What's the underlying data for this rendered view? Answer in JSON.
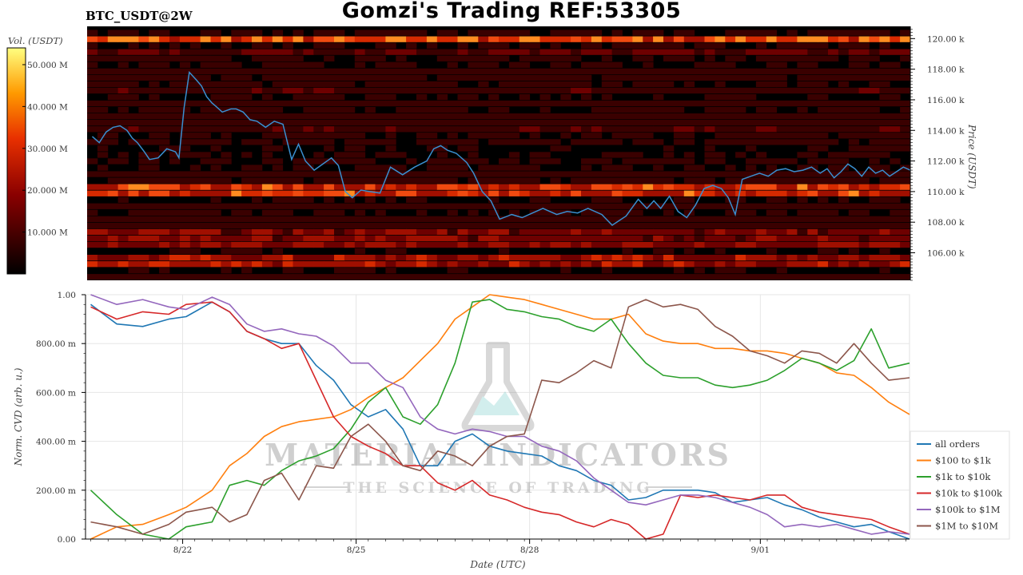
{
  "header": {
    "title": "Gomzi's Trading REF:53305",
    "symbol": "BTC_USDT@2W"
  },
  "watermark": {
    "brand": "MATERIAL INDICATORS",
    "tagline": "THE SCIENCE OF TRADING"
  },
  "colors": {
    "heatmap_bg": "#000000",
    "price_line": "#3a8fd0",
    "grid": "#e6e6e6"
  },
  "chart_data": [
    {
      "type": "heatmap",
      "title": "",
      "colorbar": {
        "label": "Vol. (USDT)",
        "ticks": [
          "10.000 M",
          "20.000 M",
          "30.000 M",
          "40.000 M",
          "50.000 M"
        ],
        "tick_values": [
          10,
          20,
          30,
          40,
          50
        ],
        "range": [
          0,
          54
        ],
        "colormap": "hot"
      },
      "ylabel": "Price (USDT)",
      "ylim": [
        104.2,
        120.8
      ],
      "y_ticks": [
        106,
        108,
        110,
        112,
        114,
        116,
        118,
        120
      ],
      "y_tick_labels": [
        "106.00 k",
        "108.00 k",
        "110.00 k",
        "112.00 k",
        "114.00 k",
        "116.00 k",
        "118.00 k",
        "120.00 k"
      ],
      "grid": false,
      "price_series": {
        "name": "price",
        "x": [
          0,
          0.4,
          0.8,
          1.2,
          1.6,
          2.0,
          2.3,
          2.6,
          3.0,
          3.3,
          3.8,
          4.3,
          4.8,
          5.0,
          5.3,
          5.6,
          6.0,
          6.3,
          6.6,
          6.9,
          7.1,
          7.5,
          8.0,
          8.3,
          8.7,
          9.1,
          9.5,
          10.0,
          10.5,
          11.0,
          11.5,
          11.9,
          12.3,
          12.8,
          13.3,
          13.8,
          14.2,
          14.6,
          15.0,
          15.5,
          16.0,
          16.6,
          17.2,
          17.9,
          18.6,
          19.3,
          19.7,
          20.1,
          20.5,
          21.0,
          21.6,
          22.0,
          22.5,
          23.0,
          23.5,
          24.2,
          24.8,
          25.4,
          26.0,
          26.8,
          27.4,
          28.0,
          28.6,
          29.4,
          30.0,
          30.8,
          31.5,
          32.0,
          32.4,
          32.8,
          33.3,
          33.8,
          34.3,
          34.8,
          35.3,
          35.8,
          36.3,
          36.7,
          37.1,
          37.5,
          38.0,
          38.5,
          39.0,
          39.5,
          40.0,
          40.5,
          41.0,
          41.5,
          42.0,
          42.4,
          42.8,
          43.2,
          43.6,
          44.0,
          44.4,
          44.8,
          45.2,
          45.6,
          46.0,
          46.4,
          46.8,
          47.2
        ],
        "y": [
          113.6,
          113.2,
          113.9,
          114.2,
          114.3,
          114.0,
          113.5,
          113.2,
          112.6,
          112.1,
          112.2,
          112.8,
          112.6,
          112.2,
          115.5,
          117.8,
          117.3,
          116.9,
          116.2,
          115.8,
          115.6,
          115.2,
          115.4,
          115.4,
          115.2,
          114.7,
          114.6,
          114.2,
          114.6,
          114.4,
          112.1,
          113.1,
          112.0,
          111.4,
          111.8,
          112.2,
          111.7,
          110.0,
          109.6,
          110.1,
          110.0,
          109.9,
          111.6,
          111.1,
          111.6,
          112.0,
          112.8,
          113.0,
          112.7,
          112.5,
          111.9,
          111.2,
          110.0,
          109.4,
          108.2,
          108.5,
          108.3,
          108.6,
          108.9,
          108.5,
          108.7,
          108.6,
          108.9,
          108.5,
          107.8,
          108.4,
          109.5,
          108.9,
          109.4,
          108.9,
          109.7,
          108.7,
          108.3,
          109.1,
          110.2,
          110.4,
          110.2,
          109.6,
          108.5,
          110.8,
          111.0,
          111.2,
          111.0,
          111.4,
          111.5,
          111.3,
          111.4,
          111.6,
          111.2,
          111.5,
          110.9,
          111.3,
          111.8,
          111.5,
          111.0,
          111.6,
          111.2,
          111.4,
          111.0,
          111.3,
          111.6,
          111.4
        ]
      }
    },
    {
      "type": "line",
      "title": "",
      "xlabel": "Date (UTC)",
      "ylabel": "Norm. CVD (arb. u.)",
      "xlim": [
        -0.3,
        47.2
      ],
      "ylim": [
        0,
        1
      ],
      "x_ticks": [
        5.3,
        15.3,
        25.3,
        38.6
      ],
      "x_tick_labels": [
        "8/22",
        "8/25",
        "8/28",
        "9/01"
      ],
      "y_ticks": [
        0,
        0.2,
        0.4,
        0.6,
        0.8,
        1.0
      ],
      "y_tick_labels": [
        "0.00",
        "200.00 m",
        "400.00 m",
        "600.00 m",
        "800.00 m",
        "1.00"
      ],
      "grid": true,
      "legend_position": "right",
      "x": [
        0,
        1.5,
        3,
        4.5,
        5.5,
        7,
        8,
        9,
        10,
        11,
        12,
        13,
        14,
        15,
        16,
        17,
        18,
        19,
        20,
        21,
        22,
        23,
        24,
        25,
        26,
        27,
        28,
        29,
        30,
        31,
        32,
        33,
        34,
        35,
        36,
        37,
        38,
        39,
        40,
        41,
        42,
        43,
        44,
        45,
        46,
        47.2
      ],
      "series": [
        {
          "name": "all orders",
          "color": "#1f77b4",
          "values": [
            0.96,
            0.88,
            0.87,
            0.9,
            0.91,
            0.97,
            0.93,
            0.85,
            0.82,
            0.8,
            0.8,
            0.71,
            0.65,
            0.55,
            0.5,
            0.53,
            0.45,
            0.3,
            0.3,
            0.4,
            0.43,
            0.38,
            0.36,
            0.35,
            0.34,
            0.3,
            0.28,
            0.24,
            0.22,
            0.16,
            0.17,
            0.2,
            0.2,
            0.2,
            0.19,
            0.15,
            0.16,
            0.17,
            0.14,
            0.12,
            0.09,
            0.07,
            0.05,
            0.06,
            0.03,
            0.0
          ]
        },
        {
          "name": "$100 to $1k",
          "color": "#ff7f0e",
          "values": [
            0.0,
            0.05,
            0.06,
            0.1,
            0.13,
            0.2,
            0.3,
            0.35,
            0.42,
            0.46,
            0.48,
            0.49,
            0.5,
            0.53,
            0.58,
            0.62,
            0.66,
            0.73,
            0.8,
            0.9,
            0.95,
            1.0,
            0.99,
            0.98,
            0.96,
            0.94,
            0.92,
            0.9,
            0.9,
            0.92,
            0.84,
            0.81,
            0.8,
            0.8,
            0.78,
            0.78,
            0.77,
            0.77,
            0.76,
            0.74,
            0.72,
            0.68,
            0.67,
            0.62,
            0.56,
            0.51
          ]
        },
        {
          "name": "$1k to $10k",
          "color": "#2ca02c",
          "values": [
            0.2,
            0.1,
            0.02,
            0.0,
            0.05,
            0.07,
            0.22,
            0.24,
            0.22,
            0.28,
            0.32,
            0.34,
            0.37,
            0.45,
            0.56,
            0.62,
            0.5,
            0.47,
            0.55,
            0.72,
            0.97,
            0.98,
            0.94,
            0.93,
            0.91,
            0.9,
            0.87,
            0.85,
            0.9,
            0.8,
            0.72,
            0.67,
            0.66,
            0.66,
            0.63,
            0.62,
            0.63,
            0.65,
            0.69,
            0.74,
            0.72,
            0.69,
            0.73,
            0.86,
            0.7,
            0.72
          ]
        },
        {
          "name": "$10k to $100k",
          "color": "#d62728",
          "values": [
            0.95,
            0.9,
            0.93,
            0.92,
            0.96,
            0.97,
            0.93,
            0.85,
            0.82,
            0.78,
            0.8,
            0.65,
            0.5,
            0.42,
            0.38,
            0.35,
            0.3,
            0.3,
            0.23,
            0.2,
            0.24,
            0.18,
            0.16,
            0.13,
            0.11,
            0.1,
            0.07,
            0.05,
            0.08,
            0.06,
            0.0,
            0.02,
            0.18,
            0.17,
            0.18,
            0.17,
            0.16,
            0.18,
            0.18,
            0.13,
            0.11,
            0.1,
            0.09,
            0.08,
            0.05,
            0.02
          ]
        },
        {
          "name": "$100k to $1M",
          "color": "#9467bd",
          "values": [
            1.0,
            0.96,
            0.98,
            0.95,
            0.94,
            0.99,
            0.96,
            0.88,
            0.85,
            0.86,
            0.84,
            0.83,
            0.79,
            0.72,
            0.72,
            0.65,
            0.62,
            0.5,
            0.45,
            0.43,
            0.45,
            0.44,
            0.42,
            0.42,
            0.38,
            0.36,
            0.32,
            0.25,
            0.2,
            0.15,
            0.14,
            0.16,
            0.18,
            0.18,
            0.17,
            0.15,
            0.13,
            0.1,
            0.05,
            0.06,
            0.05,
            0.06,
            0.04,
            0.02,
            0.03,
            0.02
          ]
        },
        {
          "name": "$1M to $10M",
          "color": "#8c564b",
          "values": [
            0.07,
            0.05,
            0.02,
            0.06,
            0.11,
            0.13,
            0.07,
            0.1,
            0.24,
            0.27,
            0.16,
            0.3,
            0.29,
            0.42,
            0.47,
            0.4,
            0.3,
            0.28,
            0.36,
            0.34,
            0.3,
            0.38,
            0.42,
            0.43,
            0.65,
            0.64,
            0.68,
            0.73,
            0.7,
            0.95,
            0.98,
            0.95,
            0.96,
            0.94,
            0.87,
            0.83,
            0.77,
            0.75,
            0.72,
            0.77,
            0.76,
            0.72,
            0.8,
            0.72,
            0.65,
            0.66
          ]
        }
      ]
    }
  ]
}
